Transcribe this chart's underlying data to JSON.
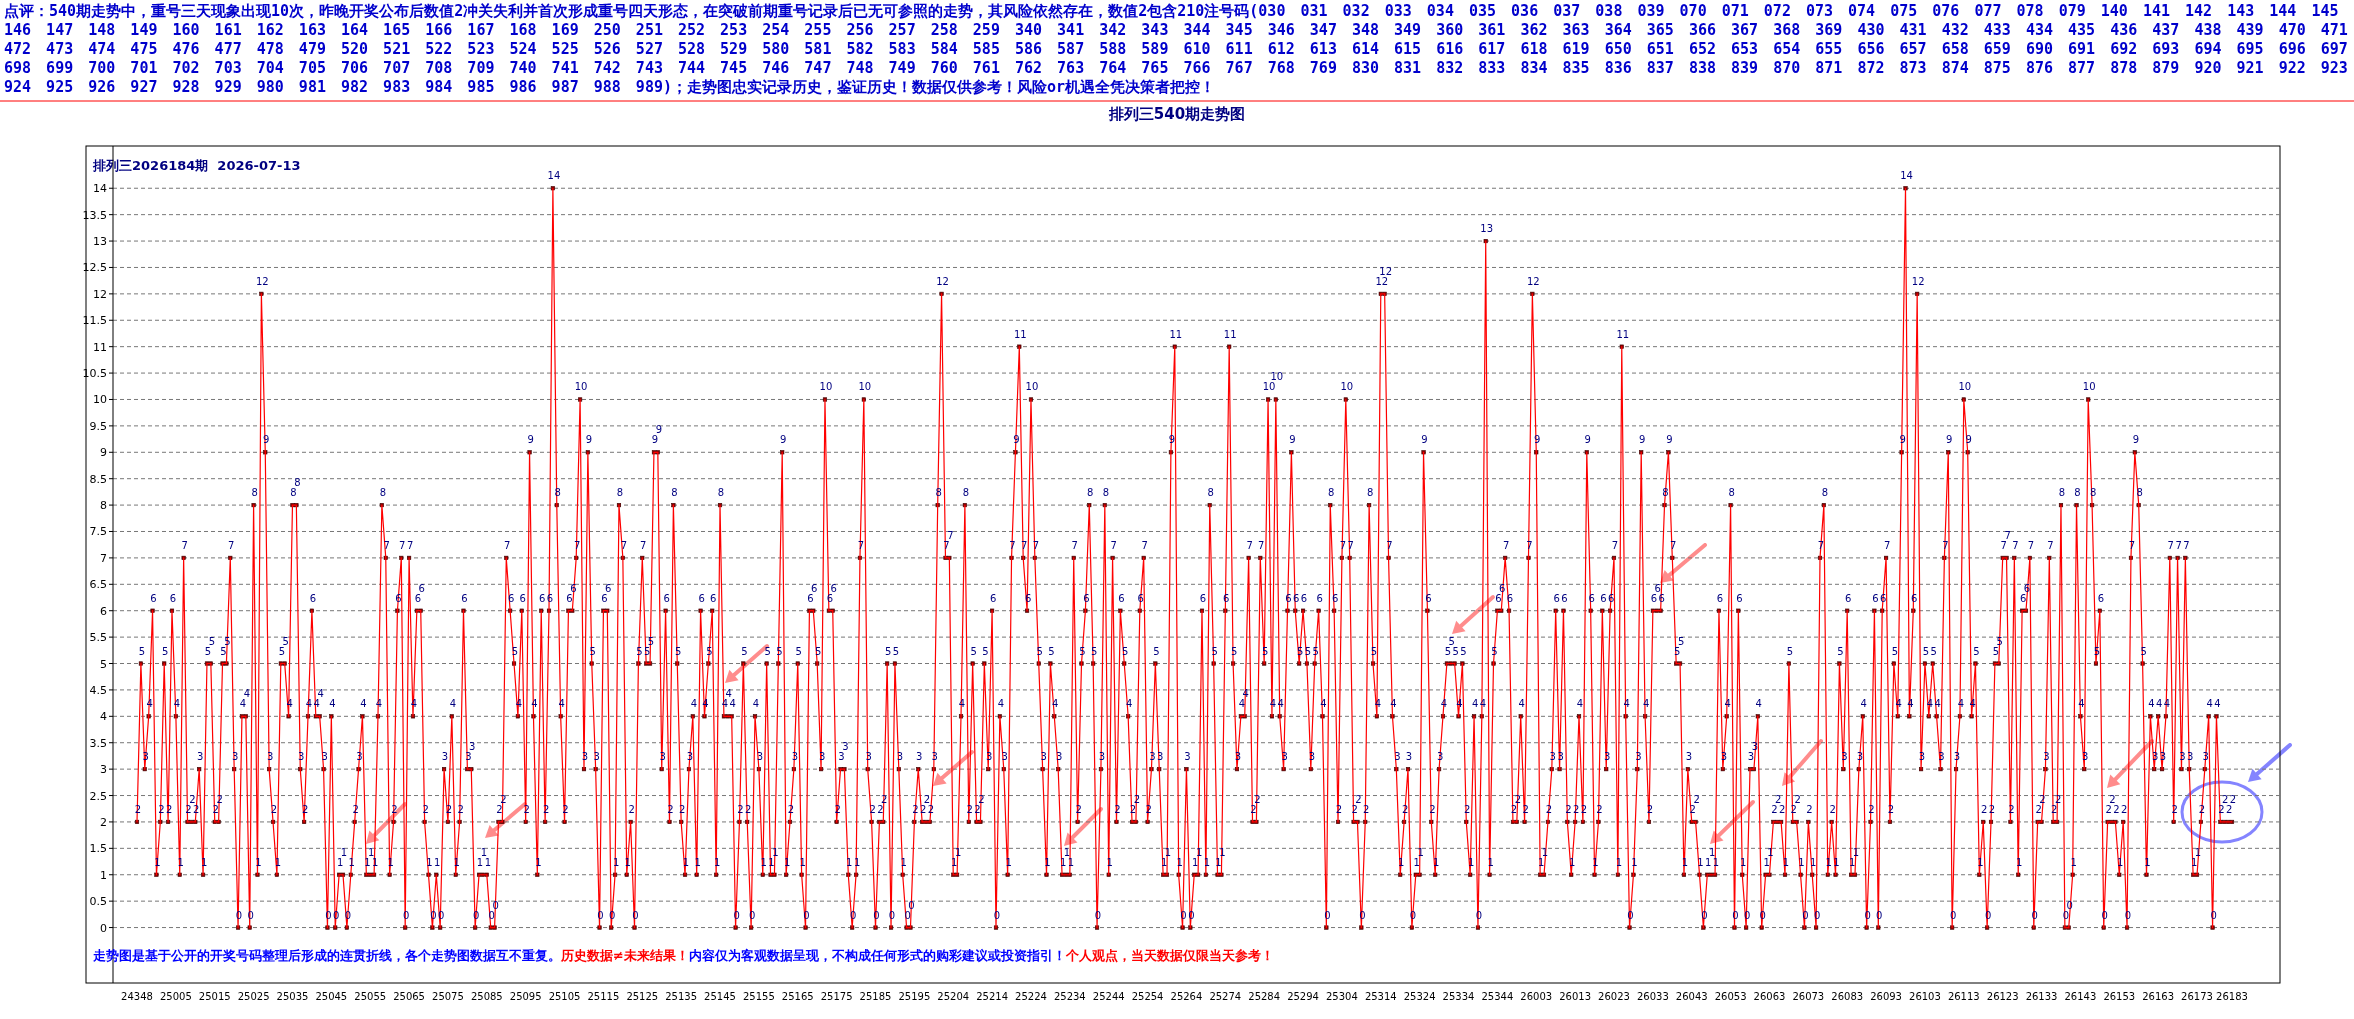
{
  "chart_data": {
    "type": "line",
    "title": "排列三540期走势图",
    "subtitle": "排列三2026184期  2026-07-13",
    "annotations": [
      "点评：540期走势中，重号三天现象出现10次，昨晚开奖公布后数值2冲关失利并首次形成重号四天形态，在突破前期重号记录后已无可参照的走势，其风险依然存在，数值2包含210注号码(030 031 032 033 034 035 036 037 038 039 070 071 072 073 074 075 076 077 078 079 140 141 142 143 144 145 146 147 148 149 160 161 162 163 164 165 166 167 168 169 250 251 252 253 254 255 256 257 258 259 340 341 342 343 344 345 346 347 348 349 360 361 362 363 364 365 366 367 368 369 430 431 432 433 434 435 436 437 438 439 470 471 472 473 474 475 476 477 478 479 520 521 522 523 524 525 526 527 528 529 580 581 582 583 584 585 586 587 588 589 610 611 612 613 614 615 616 617 618 619 650 651 652 653 654 655 656 657 658 659 690 691 692 693 694 695 696 697 698 699 700 701 702 703 704 705 706 707 708 709 740 741 742 743 744 745 746 747 748 749 760 761 762 763 764 765 766 767 768 769 830 831 832 833 834 835 836 837 838 839 870 871 872 873 874 875 876 877 878 879 920 921 922 923 924 925 926 927 928 929 980 981 982 983 984 985 986 987 988 989)；走势图忠实记录历史，鉴证历史！数据仅供参考！风险or机遇全凭决策者把控！",
      "走势图是基于公开的开奖号码整理后形成的连贯折线，各个走势图数据互不重复。",
      "历史数据≠未来结果！",
      "内容仅为客观数据呈现，不构成任何形式的购彩建议或投资指引！",
      "个人观点，当天数据仅限当天参考！"
    ],
    "categories": [
      "24348",
      null,
      null,
      null,
      null,
      null,
      null,
      null,
      null,
      null,
      "25005",
      null,
      null,
      null,
      null,
      null,
      null,
      null,
      null,
      null,
      "25015",
      null,
      null,
      null,
      null,
      null,
      null,
      null,
      null,
      null,
      "25025",
      null,
      null,
      null,
      null,
      null,
      null,
      null,
      null,
      null,
      "25035",
      null,
      null,
      null,
      null,
      null,
      null,
      null,
      null,
      null,
      "25045",
      null,
      null,
      null,
      null,
      null,
      null,
      null,
      null,
      null,
      "25055",
      null,
      null,
      null,
      null,
      null,
      null,
      null,
      null,
      null,
      "25065",
      null,
      null,
      null,
      null,
      null,
      null,
      null,
      null,
      null,
      "25075",
      null,
      null,
      null,
      null,
      null,
      null,
      null,
      null,
      null,
      "25085",
      null,
      null,
      null,
      null,
      null,
      null,
      null,
      null,
      null,
      "25095",
      null,
      null,
      null,
      null,
      null,
      null,
      null,
      null,
      null,
      "25105",
      null,
      null,
      null,
      null,
      null,
      null,
      null,
      null,
      null,
      "25115",
      null,
      null,
      null,
      null,
      null,
      null,
      null,
      null,
      null,
      "25125",
      null,
      null,
      null,
      null,
      null,
      null,
      null,
      null,
      null,
      "25135",
      null,
      null,
      null,
      null,
      null,
      null,
      null,
      null,
      null,
      "25145",
      null,
      null,
      null,
      null,
      null,
      null,
      null,
      null,
      null,
      "25155",
      null,
      null,
      null,
      null,
      null,
      null,
      null,
      null,
      null,
      "25165",
      null,
      null,
      null,
      null,
      null,
      null,
      null,
      null,
      null,
      "25175",
      null,
      null,
      null,
      null,
      null,
      null,
      null,
      null,
      null,
      "25185",
      null,
      null,
      null,
      null,
      null,
      null,
      null,
      null,
      null,
      "25195",
      null,
      null,
      null,
      null,
      null,
      null,
      null,
      null,
      null,
      "25204",
      null,
      null,
      null,
      null,
      null,
      null,
      null,
      null,
      null,
      "25214",
      null,
      null,
      null,
      null,
      null,
      null,
      null,
      null,
      null,
      "25224",
      null,
      null,
      null,
      null,
      null,
      null,
      null,
      null,
      null,
      "25234",
      null,
      null,
      null,
      null,
      null,
      null,
      null,
      null,
      null,
      "25244",
      null,
      null,
      null,
      null,
      null,
      null,
      null,
      null,
      null,
      "25254",
      null,
      null,
      null,
      null,
      null,
      null,
      null,
      null,
      null,
      "25264",
      null,
      null,
      null,
      null,
      null,
      null,
      null,
      null,
      null,
      "25274",
      null,
      null,
      null,
      null,
      null,
      null,
      null,
      null,
      null,
      "25284",
      null,
      null,
      null,
      null,
      null,
      null,
      null,
      null,
      null,
      "25294",
      null,
      null,
      null,
      null,
      null,
      null,
      null,
      null,
      null,
      "25304",
      null,
      null,
      null,
      null,
      null,
      null,
      null,
      null,
      null,
      "25314",
      null,
      null,
      null,
      null,
      null,
      null,
      null,
      null,
      null,
      "25324",
      null,
      null,
      null,
      null,
      null,
      null,
      null,
      null,
      null,
      "25334",
      null,
      null,
      null,
      null,
      null,
      null,
      null,
      null,
      null,
      "25344",
      null,
      null,
      null,
      null,
      null,
      null,
      null,
      null,
      null,
      "26003",
      null,
      null,
      null,
      null,
      null,
      null,
      null,
      null,
      null,
      "26013",
      null,
      null,
      null,
      null,
      null,
      null,
      null,
      null,
      null,
      "26023",
      null,
      null,
      null,
      null,
      null,
      null,
      null,
      null,
      null,
      "26033",
      null,
      null,
      null,
      null,
      null,
      null,
      null,
      null,
      null,
      "26043",
      null,
      null,
      null,
      null,
      null,
      null,
      null,
      null,
      null,
      "26053",
      null,
      null,
      null,
      null,
      null,
      null,
      null,
      null,
      null,
      "26063",
      null,
      null,
      null,
      null,
      null,
      null,
      null,
      null,
      null,
      "26073",
      null,
      null,
      null,
      null,
      null,
      null,
      null,
      null,
      null,
      "26083",
      null,
      null,
      null,
      null,
      null,
      null,
      null,
      null,
      null,
      "26093",
      null,
      null,
      null,
      null,
      null,
      null,
      null,
      null,
      null,
      "26103",
      null,
      null,
      null,
      null,
      null,
      null,
      null,
      null,
      null,
      "26113",
      null,
      null,
      null,
      null,
      null,
      null,
      null,
      null,
      null,
      "26123",
      null,
      null,
      null,
      null,
      null,
      null,
      null,
      null,
      null,
      "26133",
      null,
      null,
      null,
      null,
      null,
      null,
      null,
      null,
      null,
      "26143",
      null,
      null,
      null,
      null,
      null,
      null,
      null,
      null,
      null,
      "26153",
      null,
      null,
      null,
      null,
      null,
      null,
      null,
      null,
      null,
      "26163",
      null,
      null,
      null,
      null,
      null,
      null,
      null,
      null,
      null,
      "26173",
      null,
      null,
      null,
      null,
      null,
      null,
      null,
      null,
      "26183"
    ],
    "series": [
      {
        "color": "#ff0000",
        "values": [
          2,
          5,
          3,
          4,
          6,
          1,
          2,
          5,
          2,
          6,
          4,
          1,
          7,
          2,
          2,
          2,
          3,
          1,
          5,
          5,
          2,
          2,
          5,
          5,
          7,
          3,
          0,
          4,
          4,
          0,
          8,
          1,
          12,
          9,
          3,
          2,
          1,
          5,
          5,
          4,
          8,
          8,
          3,
          2,
          4,
          6,
          4,
          4,
          3,
          0,
          4,
          0,
          1,
          1,
          0,
          1,
          2,
          3,
          4,
          1,
          1,
          1,
          4,
          8,
          7,
          1,
          2,
          6,
          7,
          0,
          7,
          4,
          6,
          6,
          2,
          1,
          0,
          1,
          0,
          3,
          2,
          4,
          1,
          2,
          6,
          3,
          3,
          0,
          1,
          1,
          1,
          0,
          0,
          2,
          2,
          7,
          6,
          5,
          4,
          6,
          2,
          9,
          4,
          1,
          6,
          2,
          6,
          14,
          8,
          4,
          2,
          6,
          6,
          7,
          10,
          3,
          9,
          5,
          3,
          0,
          6,
          6,
          0,
          1,
          8,
          7,
          1,
          2,
          0,
          5,
          7,
          5,
          5,
          9,
          9,
          3,
          6,
          2,
          8,
          5,
          2,
          1,
          3,
          4,
          1,
          6,
          4,
          5,
          6,
          1,
          8,
          4,
          4,
          4,
          0,
          2,
          5,
          2,
          0,
          4,
          3,
          1,
          5,
          1,
          1,
          5,
          9,
          1,
          2,
          3,
          5,
          1,
          0,
          6,
          6,
          5,
          3,
          10,
          6,
          6,
          2,
          3,
          3,
          1,
          0,
          1,
          7,
          10,
          3,
          2,
          0,
          2,
          2,
          5,
          0,
          5,
          3,
          1,
          0,
          0,
          2,
          3,
          2,
          2,
          2,
          3,
          8,
          12,
          7,
          7,
          1,
          1,
          4,
          8,
          2,
          5,
          2,
          2,
          5,
          3,
          6,
          0,
          4,
          3,
          1,
          7,
          9,
          11,
          7,
          6,
          10,
          7,
          5,
          3,
          1,
          5,
          4,
          3,
          1,
          1,
          1,
          7,
          2,
          5,
          6,
          8,
          5,
          0,
          3,
          8,
          1,
          7,
          2,
          6,
          5,
          4,
          2,
          2,
          6,
          7,
          2,
          3,
          5,
          3,
          1,
          1,
          9,
          11,
          1,
          0,
          3,
          0,
          1,
          1,
          6,
          1,
          8,
          5,
          1,
          1,
          6,
          11,
          5,
          3,
          4,
          4,
          7,
          2,
          2,
          7,
          5,
          10,
          4,
          10,
          4,
          3,
          6,
          9,
          6,
          5,
          6,
          5,
          3,
          5,
          6,
          4,
          0,
          8,
          6,
          2,
          7,
          10,
          7,
          2,
          2,
          0,
          2,
          8,
          5,
          4,
          12,
          12,
          7,
          4,
          3,
          1,
          2,
          3,
          0,
          1,
          1,
          9,
          6,
          2,
          1,
          3,
          4,
          5,
          5,
          5,
          4,
          5,
          2,
          1,
          4,
          0,
          4,
          13,
          1,
          5,
          6,
          6,
          7,
          6,
          2,
          2,
          4,
          2,
          7,
          12,
          9,
          1,
          1,
          2,
          3,
          6,
          3,
          6,
          2,
          1,
          2,
          4,
          2,
          9,
          6,
          1,
          2,
          6,
          3,
          6,
          7,
          1,
          11,
          4,
          0,
          1,
          3,
          9,
          4,
          2,
          6,
          6,
          6,
          8,
          9,
          7,
          5,
          5,
          1,
          3,
          2,
          2,
          1,
          0,
          1,
          1,
          1,
          6,
          3,
          4,
          8,
          0,
          6,
          1,
          0,
          3,
          3,
          4,
          0,
          1,
          1,
          2,
          2,
          2,
          1,
          5,
          2,
          2,
          1,
          0,
          2,
          1,
          0,
          7,
          8,
          1,
          2,
          1,
          5,
          3,
          6,
          1,
          1,
          3,
          4,
          0,
          2,
          6,
          0,
          6,
          7,
          2,
          5,
          4,
          9,
          14,
          4,
          6,
          12,
          3,
          5,
          4,
          5,
          4,
          3,
          7,
          9,
          0,
          3,
          4,
          10,
          9,
          4,
          5,
          1,
          2,
          0,
          2,
          5,
          5,
          7,
          7,
          2,
          7,
          1,
          6,
          6,
          7,
          0,
          2,
          2,
          3,
          7,
          2,
          2,
          8,
          0,
          0,
          1,
          8,
          4,
          3,
          10,
          8,
          5,
          6,
          0,
          2,
          2,
          2,
          1,
          2,
          0,
          7,
          9,
          8,
          5,
          1,
          4,
          3,
          4,
          3,
          4,
          7,
          2,
          7,
          3,
          7,
          3,
          1,
          1,
          2,
          3,
          4,
          0,
          4,
          2,
          2,
          2,
          2
        ]
      }
    ],
    "ylim": [
      -1.05,
      14.8
    ],
    "yticks": [
      0,
      0.5,
      1,
      1.5,
      2,
      2.5,
      3,
      3.5,
      4,
      4.5,
      5,
      5.5,
      6,
      6.5,
      7,
      7.5,
      8,
      8.5,
      9,
      9.5,
      10,
      10.5,
      11,
      11.5,
      12,
      12.5,
      13,
      13.5,
      14
    ],
    "grid": "y",
    "data_labels": true,
    "marker": "square",
    "line_style": "solid"
  }
}
